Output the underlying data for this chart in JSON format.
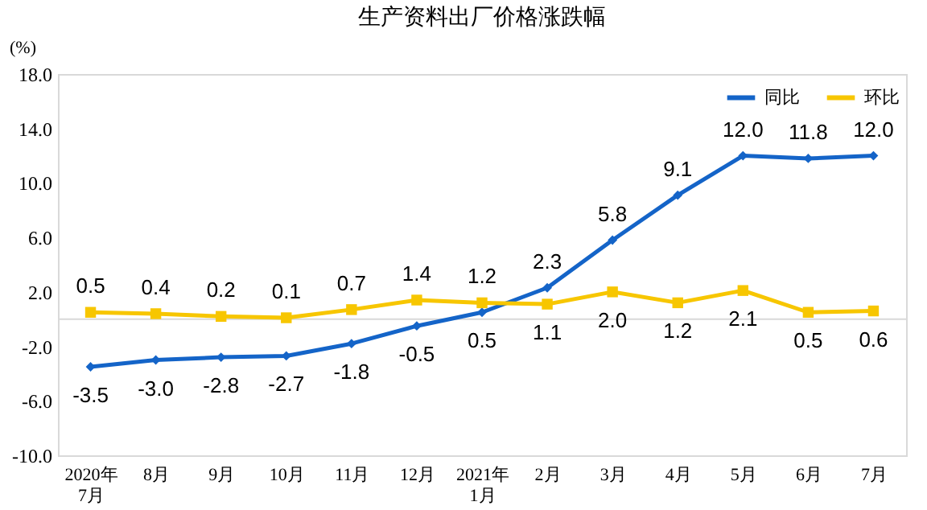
{
  "chart_data": {
    "type": "line",
    "title": "生产资料出厂价格涨跌幅",
    "ylabel": "(%)",
    "categories": [
      "2020年\n7月",
      "8月",
      "9月",
      "10月",
      "11月",
      "12月",
      "2021年\n1月",
      "2月",
      "3月",
      "4月",
      "5月",
      "6月",
      "7月"
    ],
    "series": [
      {
        "name": "同比",
        "color": "#1464c8",
        "marker": "diamond",
        "values": [
          -3.5,
          -3.0,
          -2.8,
          -2.7,
          -1.8,
          -0.5,
          0.5,
          2.3,
          5.8,
          9.1,
          12.0,
          11.8,
          12.0
        ],
        "value_labels": [
          "-3.5",
          "-3.0",
          "-2.8",
          "-2.7",
          "-1.8",
          "-0.5",
          "0.5",
          "2.3",
          "5.8",
          "9.1",
          "12.0",
          "11.8",
          "12.0"
        ]
      },
      {
        "name": "环比",
        "color": "#f7c600",
        "marker": "square",
        "values": [
          0.5,
          0.4,
          0.2,
          0.1,
          0.7,
          1.4,
          1.2,
          1.1,
          2.0,
          1.2,
          2.1,
          0.5,
          0.6
        ],
        "value_labels": [
          "0.5",
          "0.4",
          "0.2",
          "0.1",
          "0.7",
          "1.4",
          "1.2",
          "1.1",
          "2.0",
          "1.2",
          "2.1",
          "0.5",
          "0.6"
        ]
      }
    ],
    "ylim": [
      -10,
      18
    ],
    "yticks": [
      {
        "value": -10,
        "label": "-10.0"
      },
      {
        "value": -6,
        "label": "-6.0"
      },
      {
        "value": -2,
        "label": "-2.0"
      },
      {
        "value": 2,
        "label": "2.0"
      },
      {
        "value": 6,
        "label": "6.0"
      },
      {
        "value": 10,
        "label": "10.0"
      },
      {
        "value": 14,
        "label": "14.0"
      },
      {
        "value": 18,
        "label": "18.0"
      }
    ],
    "ref_lines": [
      {
        "axis": "y",
        "value": 0,
        "color": "#d9d9d9"
      }
    ],
    "grid": false,
    "legend": "top right",
    "line_style": "solid"
  }
}
